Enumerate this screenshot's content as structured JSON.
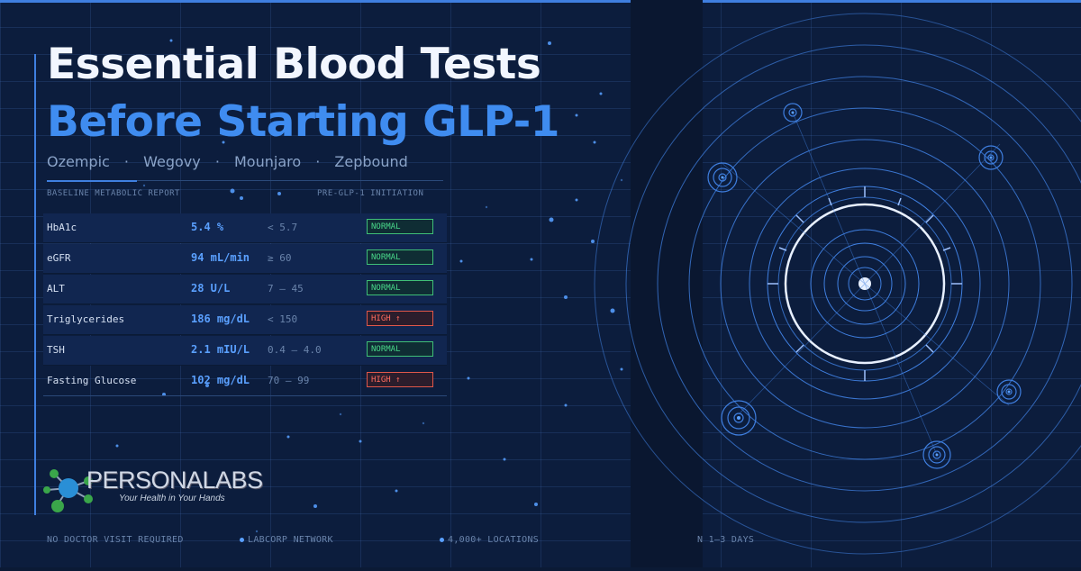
{
  "title": {
    "line1": "Essential Blood Tests",
    "line2": "Before Starting GLP-1"
  },
  "drugs": [
    "Ozempic",
    "Wegovy",
    "Mounjaro",
    "Zepbound"
  ],
  "drug_separator": "·",
  "report": {
    "left_label": "BASELINE METABOLIC REPORT",
    "right_label": "PRE-GLP-1 INITIATION"
  },
  "tests": [
    {
      "name": "HbA1c",
      "value": "5.4 %",
      "range": "< 5.7",
      "status": "NORMAL",
      "level": "normal"
    },
    {
      "name": "eGFR",
      "value": "94 mL/min",
      "range": "≥ 60",
      "status": "NORMAL",
      "level": "normal"
    },
    {
      "name": "ALT",
      "value": "28 U/L",
      "range": "7 – 45",
      "status": "NORMAL",
      "level": "normal"
    },
    {
      "name": "Triglycerides",
      "value": "186 mg/dL",
      "range": "< 150",
      "status": "HIGH ↑",
      "level": "high"
    },
    {
      "name": "TSH",
      "value": "2.1 mIU/L",
      "range": "0.4 – 4.0",
      "status": "NORMAL",
      "level": "normal"
    },
    {
      "name": "Fasting Glucose",
      "value": "102 mg/dL",
      "range": "70 – 99",
      "status": "HIGH ↑",
      "level": "high"
    }
  ],
  "logo": {
    "name": "PERSONALABS",
    "tagline": "Your Health in Your Hands"
  },
  "footer": [
    "NO DOCTOR VISIT REQUIRED",
    "LABCORP NETWORK",
    "4,000+ LOCATIONS",
    "N 1–3 DAYS"
  ],
  "colors": {
    "accent": "#3f8cf0",
    "normal": "#49d88a",
    "high": "#ff6b5e",
    "background": "#0c1d3d"
  }
}
